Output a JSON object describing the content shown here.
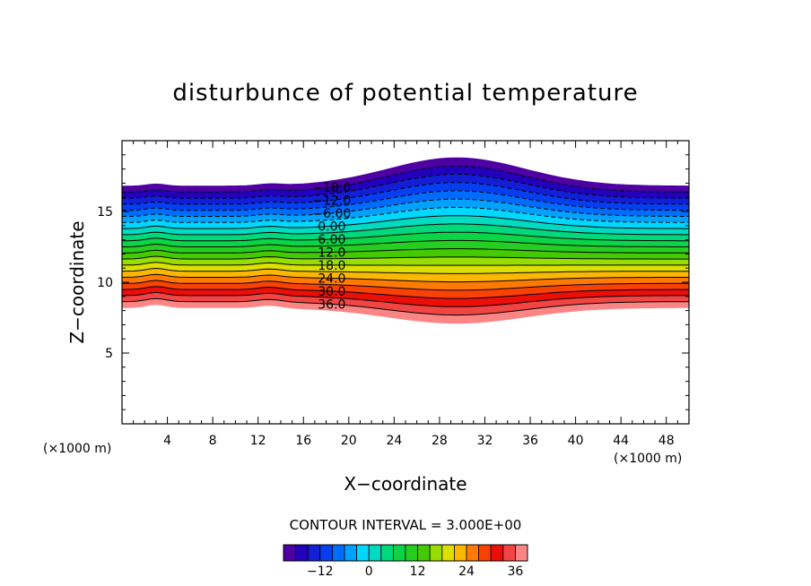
{
  "chart_data": {
    "type": "contour",
    "title": "disturbunce of potential temperature",
    "xlabel": "X−coordinate",
    "ylabel": "Z−coordinate",
    "x_unit_left": "(×1000 m)",
    "x_unit_right": "(×1000 m)",
    "xlim": [
      0,
      50
    ],
    "ylim": [
      0,
      20
    ],
    "x_ticks": [
      4,
      8,
      12,
      16,
      20,
      24,
      28,
      32,
      36,
      40,
      44,
      48
    ],
    "x_tick_labels": [
      "4",
      "8",
      "12",
      "16",
      "20",
      "24",
      "28",
      "32",
      "36",
      "40",
      "44",
      "48"
    ],
    "y_ticks": [
      5,
      10,
      15
    ],
    "y_tick_labels": [
      "5",
      "10",
      "15"
    ],
    "contour_interval_text": "CONTOUR INTERVAL = 3.000E+00",
    "contour_interval": 3.0,
    "value_min": -21,
    "value_max": 39,
    "domain_top_flat_z": 16.8,
    "domain_top_peak_z": 18.8,
    "domain_bottom_flat_z": 8.2,
    "domain_bottom_trough_z": 7.1,
    "bump_center_x": 29.5,
    "contour_labels": [
      {
        "text": "−18.0",
        "value": -18
      },
      {
        "text": "−12.0",
        "value": -12
      },
      {
        "text": "−6.00",
        "value": -6
      },
      {
        "text": "0.00",
        "value": 0
      },
      {
        "text": "6.00",
        "value": 6
      },
      {
        "text": "12.0",
        "value": 12
      },
      {
        "text": "18.0",
        "value": 18
      },
      {
        "text": "24.0",
        "value": 24
      },
      {
        "text": "30.0",
        "value": 30
      },
      {
        "text": "36.0",
        "value": 36
      }
    ],
    "colorbar_ticks": [
      {
        "text": "−12",
        "value": -12
      },
      {
        "text": "0",
        "value": 0
      },
      {
        "text": "12",
        "value": 12
      },
      {
        "text": "24",
        "value": 24
      },
      {
        "text": "36",
        "value": 36
      }
    ]
  }
}
